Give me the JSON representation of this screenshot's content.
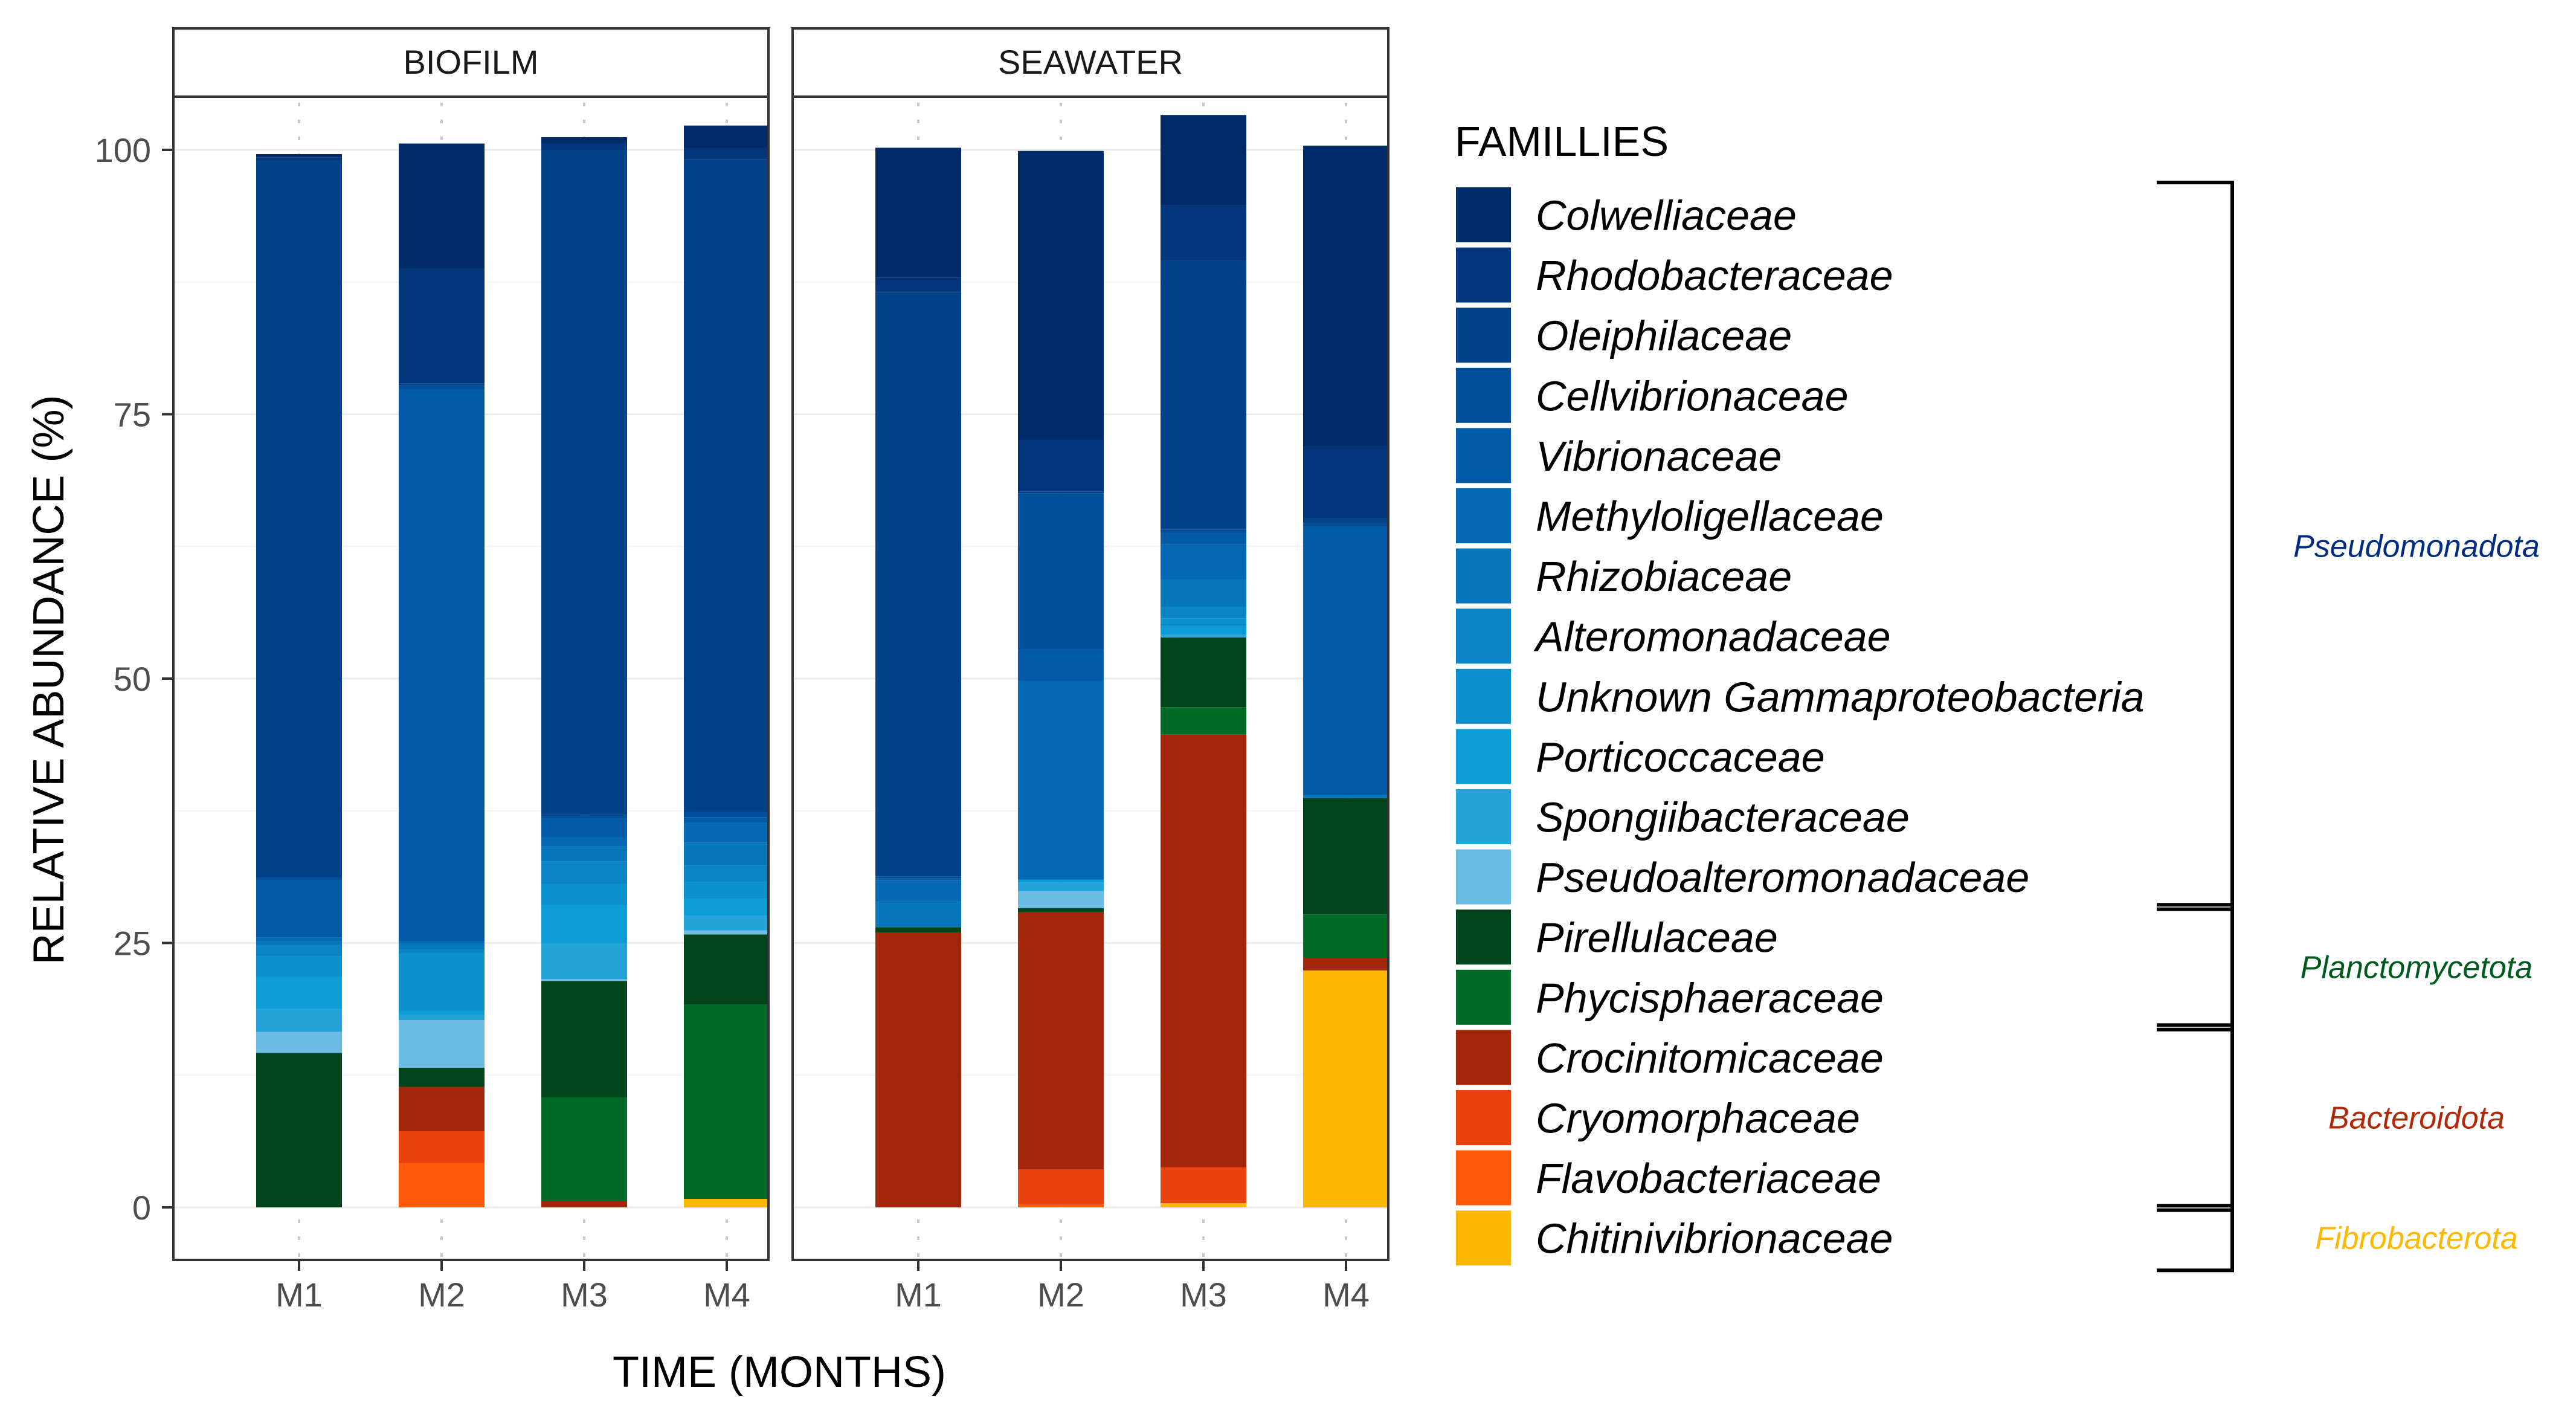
{
  "chart_data": {
    "type": "bar",
    "stacked": true,
    "facets": [
      "BIOFILM",
      "SEAWATER"
    ],
    "categories": [
      "M1",
      "M2",
      "M3",
      "M4"
    ],
    "xlabel": "TIME (MONTHS)",
    "ylabel": "RELATIVE ABUNDANCE (%)",
    "ylim": [
      0,
      100
    ],
    "yticks": [
      0,
      25,
      50,
      75,
      100
    ],
    "legend_title": "FAMILLIES",
    "legend_position": "right",
    "series": [
      {
        "name": "Chitinivibrionaceae",
        "color": "#FDB902",
        "values": {
          "BIOFILM": [
            0,
            0,
            0,
            0.8
          ],
          "SEAWATER": [
            0,
            0,
            0.4,
            22.4
          ]
        }
      },
      {
        "name": "Flavobacteriaceae",
        "color": "#FF5A0A",
        "values": {
          "BIOFILM": [
            0,
            4.2,
            0,
            0
          ],
          "SEAWATER": [
            0,
            0.3,
            0,
            0
          ]
        }
      },
      {
        "name": "Cryomorphaceae",
        "color": "#E8420F",
        "values": {
          "BIOFILM": [
            0,
            3,
            0,
            0
          ],
          "SEAWATER": [
            0,
            3.3,
            3.4,
            0
          ]
        }
      },
      {
        "name": "Crocinitomicaceae",
        "color": "#A2260A",
        "values": {
          "BIOFILM": [
            0,
            4.2,
            0.6,
            0
          ],
          "SEAWATER": [
            26,
            24.3,
            40.9,
            1.2
          ]
        }
      },
      {
        "name": "Phycisphaeraceae",
        "color": "#006B26",
        "values": {
          "BIOFILM": [
            0,
            0,
            9.8,
            18.4
          ],
          "SEAWATER": [
            0,
            0,
            2.6,
            4.1
          ]
        }
      },
      {
        "name": "Pirellulaceae",
        "color": "#00441B",
        "values": {
          "BIOFILM": [
            14.6,
            1.8,
            11,
            6.6
          ],
          "SEAWATER": [
            0.5,
            0.4,
            6.6,
            11
          ]
        }
      },
      {
        "name": "Pseudoalteromonadaceae",
        "color": "#6BBDE3",
        "values": {
          "BIOFILM": [
            2,
            4.5,
            0.2,
            0.4
          ],
          "SEAWATER": [
            0,
            1.6,
            0,
            0
          ]
        }
      },
      {
        "name": "Spongiibacteraceae",
        "color": "#25A4DA",
        "values": {
          "BIOFILM": [
            2.2,
            0.5,
            3.4,
            1.4
          ],
          "SEAWATER": [
            0,
            0.8,
            0.3,
            0
          ]
        }
      },
      {
        "name": "Porticoccaceae",
        "color": "#0D9DD6",
        "values": {
          "BIOFILM": [
            3,
            0.4,
            3.6,
            1.6
          ],
          "SEAWATER": [
            0,
            0.3,
            0.7,
            0
          ]
        }
      },
      {
        "name": "Unknown Gammaproteobacteria",
        "color": "#0C91CC",
        "values": {
          "BIOFILM": [
            1.9,
            5.4,
            2,
            1.6
          ],
          "SEAWATER": [
            0,
            0,
            0.8,
            0
          ]
        }
      },
      {
        "name": "Alteromonadaceae",
        "color": "#0A84C4",
        "values": {
          "BIOFILM": [
            1.1,
            0.4,
            2.1,
            1.5
          ],
          "SEAWATER": [
            0,
            0,
            1.1,
            0
          ]
        }
      },
      {
        "name": "Rhizobiaceae",
        "color": "#0777BC",
        "values": {
          "BIOFILM": [
            0.4,
            0.6,
            1.4,
            2.2
          ],
          "SEAWATER": [
            2.4,
            0,
            2.6,
            0.3
          ]
        }
      },
      {
        "name": "Methyloligellaceae",
        "color": "#0468B4",
        "values": {
          "BIOFILM": [
            0.3,
            0.2,
            0.9,
            1.9
          ],
          "SEAWATER": [
            2,
            18.8,
            3.3,
            0
          ]
        }
      },
      {
        "name": "Vibrionaceae",
        "color": "#035AA6",
        "values": {
          "BIOFILM": [
            5.5,
            52.2,
            1.8,
            0.5
          ],
          "SEAWATER": [
            0.2,
            3,
            1.1,
            25.4
          ]
        }
      },
      {
        "name": "Cellvibrionaceae",
        "color": "#024E98",
        "values": {
          "BIOFILM": [
            0.2,
            0.3,
            0.3,
            0.5
          ],
          "SEAWATER": [
            0.2,
            14.7,
            0.3,
            0.3
          ]
        }
      },
      {
        "name": "Oleiphilaceae",
        "color": "#014289",
        "values": {
          "BIOFILM": [
            67.8,
            0.2,
            62.9,
            61.7
          ],
          "SEAWATER": [
            55.2,
            0.2,
            25.5,
            0.5
          ]
        }
      },
      {
        "name": "Rhodobacteraceae",
        "color": "#01367A",
        "values": {
          "BIOFILM": [
            0.3,
            10.9,
            0.6,
            1.1
          ],
          "SEAWATER": [
            1.4,
            4.9,
            5.2,
            6.8
          ]
        }
      },
      {
        "name": "Colwelliaceae",
        "color": "#012A68",
        "values": {
          "BIOFILM": [
            0.3,
            11.8,
            0.6,
            2.1
          ],
          "SEAWATER": [
            12.3,
            27.3,
            8.5,
            28.4
          ]
        }
      }
    ],
    "phyla": [
      {
        "name": "Pseudomonadota",
        "color": "#002D80",
        "from": "Colwelliaceae",
        "to": "Pseudoalteromonadaceae"
      },
      {
        "name": "Planctomycetota",
        "color": "#005A20",
        "from": "Pirellulaceae",
        "to": "Phycisphaeraceae"
      },
      {
        "name": "Bacteroidota",
        "color": "#B02A0A",
        "from": "Crocinitomicaceae",
        "to": "Flavobacteriaceae"
      },
      {
        "name": "Fibrobacterota",
        "color": "#FDB902",
        "from": "Chitinivibrionaceae",
        "to": "Chitinivibrionaceae"
      }
    ]
  }
}
